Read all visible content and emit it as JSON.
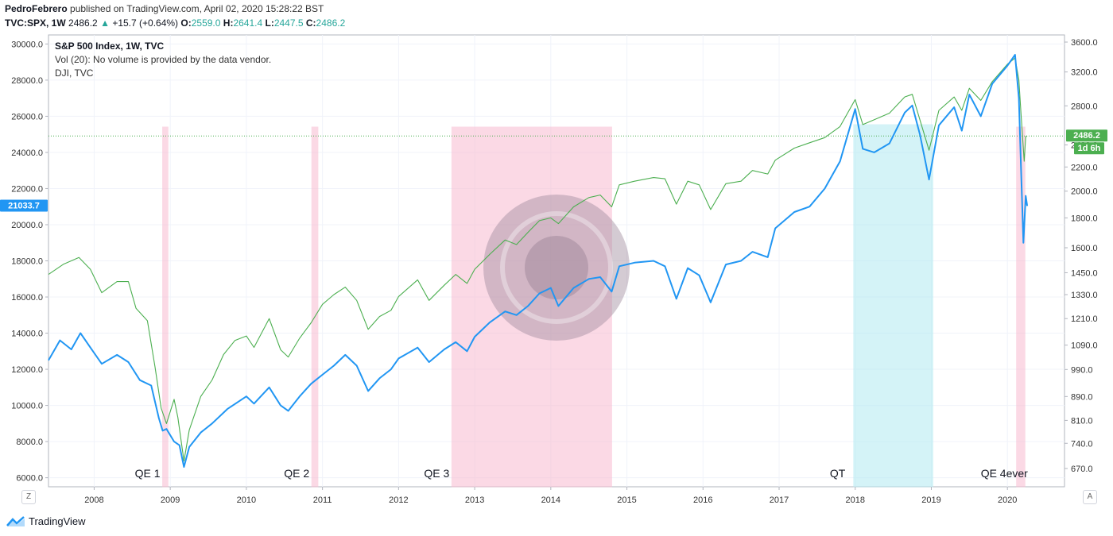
{
  "header": {
    "author": "PedroFebrero",
    "published": "published on TradingView.com, April 02, 2020 15:28:22 BST",
    "symbol": "TVC:SPX, 1W",
    "last": "2486.2",
    "change_arrow": "▲",
    "change": "+15.7 (+0.64%)",
    "o_label": "O:",
    "o": "2559.0",
    "h_label": "H:",
    "h": "2641.4",
    "l_label": "L:",
    "l": "2447.5",
    "c_label": "C:",
    "c": "2486.2"
  },
  "legend": {
    "line1": "S&P 500 Index, 1W, TVC",
    "line2": "Vol (20): No volume is provided by the data vendor.",
    "line3": "DJI, TVC"
  },
  "buttons": {
    "left": "Z",
    "right": "A"
  },
  "footer": {
    "brand": "TradingView"
  },
  "colors": {
    "spx": "#2196f3",
    "dji": "#4caf50",
    "qe": "#f8bbd0",
    "qt": "#b2ebf2",
    "badge_blue": "#2196f3",
    "badge_green": "#4caf50"
  },
  "chart_data": {
    "type": "line",
    "left_axis": {
      "label": "DJI",
      "ticks": [
        "30000.0",
        "28000.0",
        "26000.0",
        "24000.0",
        "22000.0",
        "20000.0",
        "18000.0",
        "16000.0",
        "14000.0",
        "12000.0",
        "10000.0",
        "8000.0",
        "6000.0"
      ],
      "range": [
        5500,
        30500
      ]
    },
    "right_axis": {
      "label": "SPX",
      "scale": "log",
      "ticks": [
        "3600.0",
        "3200.0",
        "2800.0",
        "2400.0",
        "2200.0",
        "2000.0",
        "1800.0",
        "1600.0",
        "1450.0",
        "1330.0",
        "1210.0",
        "1090.0",
        "990.0",
        "890.0",
        "810.0",
        "740.0",
        "670.0"
      ]
    },
    "x_ticks": [
      "2008",
      "2009",
      "2010",
      "2011",
      "2012",
      "2013",
      "2014",
      "2015",
      "2016",
      "2017",
      "2018",
      "2019",
      "2020"
    ],
    "x_range": [
      2007.4,
      2020.75
    ],
    "price_badges": [
      {
        "text": "21033.7",
        "value": 21033.7,
        "axis": "left"
      },
      {
        "text": "2486.2",
        "value": 2486.2,
        "axis": "right"
      },
      {
        "text": "1d 6h",
        "axis": "right"
      }
    ],
    "reference_line": {
      "value": 2486.2,
      "axis": "right"
    },
    "regions": [
      {
        "label": "QE 1",
        "x0": 2008.9,
        "x1": 2008.97,
        "kind": "qe"
      },
      {
        "label": "QE 2",
        "x0": 2010.86,
        "x1": 2010.94,
        "kind": "qe"
      },
      {
        "label": "QE 3",
        "x0": 2012.7,
        "x1": 2014.8,
        "kind": "qe"
      },
      {
        "label": "QT",
        "x0": 2017.98,
        "x1": 2019.02,
        "kind": "qt"
      },
      {
        "label": "QE 4ever",
        "x0": 2020.12,
        "x1": 2020.23,
        "kind": "qe"
      }
    ],
    "series": [
      {
        "axis": "right",
        "points": [
          [
            2007.4,
            1440
          ],
          [
            2007.6,
            1500
          ],
          [
            2007.8,
            1540
          ],
          [
            2007.95,
            1470
          ],
          [
            2008.1,
            1340
          ],
          [
            2008.3,
            1400
          ],
          [
            2008.45,
            1400
          ],
          [
            2008.55,
            1260
          ],
          [
            2008.7,
            1200
          ],
          [
            2008.8,
            1000
          ],
          [
            2008.88,
            850
          ],
          [
            2008.95,
            800
          ],
          [
            2009.05,
            880
          ],
          [
            2009.1,
            820
          ],
          [
            2009.18,
            690
          ],
          [
            2009.25,
            780
          ],
          [
            2009.4,
            890
          ],
          [
            2009.55,
            950
          ],
          [
            2009.7,
            1050
          ],
          [
            2009.85,
            1110
          ],
          [
            2010.0,
            1130
          ],
          [
            2010.1,
            1080
          ],
          [
            2010.3,
            1210
          ],
          [
            2010.45,
            1070
          ],
          [
            2010.55,
            1040
          ],
          [
            2010.7,
            1120
          ],
          [
            2010.85,
            1190
          ],
          [
            2011.0,
            1280
          ],
          [
            2011.15,
            1330
          ],
          [
            2011.3,
            1370
          ],
          [
            2011.45,
            1300
          ],
          [
            2011.6,
            1160
          ],
          [
            2011.75,
            1220
          ],
          [
            2011.9,
            1250
          ],
          [
            2012.0,
            1320
          ],
          [
            2012.25,
            1410
          ],
          [
            2012.4,
            1300
          ],
          [
            2012.6,
            1380
          ],
          [
            2012.75,
            1440
          ],
          [
            2012.9,
            1390
          ],
          [
            2013.0,
            1470
          ],
          [
            2013.2,
            1560
          ],
          [
            2013.4,
            1650
          ],
          [
            2013.55,
            1620
          ],
          [
            2013.7,
            1700
          ],
          [
            2013.85,
            1780
          ],
          [
            2014.0,
            1800
          ],
          [
            2014.1,
            1760
          ],
          [
            2014.3,
            1880
          ],
          [
            2014.5,
            1950
          ],
          [
            2014.65,
            1970
          ],
          [
            2014.8,
            1880
          ],
          [
            2014.9,
            2050
          ],
          [
            2015.1,
            2080
          ],
          [
            2015.35,
            2110
          ],
          [
            2015.5,
            2100
          ],
          [
            2015.65,
            1900
          ],
          [
            2015.8,
            2080
          ],
          [
            2015.95,
            2050
          ],
          [
            2016.1,
            1860
          ],
          [
            2016.3,
            2060
          ],
          [
            2016.5,
            2080
          ],
          [
            2016.65,
            2170
          ],
          [
            2016.85,
            2140
          ],
          [
            2016.95,
            2260
          ],
          [
            2017.2,
            2370
          ],
          [
            2017.4,
            2420
          ],
          [
            2017.6,
            2470
          ],
          [
            2017.8,
            2580
          ],
          [
            2018.0,
            2870
          ],
          [
            2018.1,
            2600
          ],
          [
            2018.25,
            2650
          ],
          [
            2018.45,
            2720
          ],
          [
            2018.65,
            2900
          ],
          [
            2018.75,
            2930
          ],
          [
            2018.85,
            2650
          ],
          [
            2018.97,
            2350
          ],
          [
            2019.1,
            2750
          ],
          [
            2019.3,
            2900
          ],
          [
            2019.4,
            2750
          ],
          [
            2019.5,
            3000
          ],
          [
            2019.65,
            2860
          ],
          [
            2019.8,
            3080
          ],
          [
            2020.0,
            3300
          ],
          [
            2020.1,
            3380
          ],
          [
            2020.15,
            3100
          ],
          [
            2020.18,
            2700
          ],
          [
            2020.22,
            2250
          ],
          [
            2020.24,
            2480
          ],
          [
            2020.26,
            2486
          ]
        ]
      },
      {
        "axis": "left",
        "points": [
          [
            2007.4,
            12500
          ],
          [
            2007.55,
            13600
          ],
          [
            2007.7,
            13100
          ],
          [
            2007.82,
            14000
          ],
          [
            2007.95,
            13200
          ],
          [
            2008.1,
            12300
          ],
          [
            2008.3,
            12800
          ],
          [
            2008.45,
            12400
          ],
          [
            2008.6,
            11400
          ],
          [
            2008.75,
            11100
          ],
          [
            2008.85,
            9300
          ],
          [
            2008.9,
            8600
          ],
          [
            2008.95,
            8700
          ],
          [
            2009.05,
            8000
          ],
          [
            2009.12,
            7800
          ],
          [
            2009.18,
            6600
          ],
          [
            2009.25,
            7700
          ],
          [
            2009.4,
            8500
          ],
          [
            2009.55,
            9000
          ],
          [
            2009.75,
            9800
          ],
          [
            2010.0,
            10500
          ],
          [
            2010.1,
            10100
          ],
          [
            2010.3,
            11000
          ],
          [
            2010.45,
            10000
          ],
          [
            2010.55,
            9700
          ],
          [
            2010.7,
            10500
          ],
          [
            2010.85,
            11200
          ],
          [
            2011.0,
            11700
          ],
          [
            2011.15,
            12200
          ],
          [
            2011.3,
            12800
          ],
          [
            2011.45,
            12200
          ],
          [
            2011.6,
            10800
          ],
          [
            2011.75,
            11500
          ],
          [
            2011.9,
            12000
          ],
          [
            2012.0,
            12600
          ],
          [
            2012.25,
            13200
          ],
          [
            2012.4,
            12400
          ],
          [
            2012.6,
            13100
          ],
          [
            2012.75,
            13500
          ],
          [
            2012.9,
            13000
          ],
          [
            2013.0,
            13800
          ],
          [
            2013.2,
            14600
          ],
          [
            2013.4,
            15200
          ],
          [
            2013.55,
            15000
          ],
          [
            2013.7,
            15500
          ],
          [
            2013.85,
            16200
          ],
          [
            2014.0,
            16500
          ],
          [
            2014.1,
            15500
          ],
          [
            2014.3,
            16500
          ],
          [
            2014.5,
            17000
          ],
          [
            2014.65,
            17100
          ],
          [
            2014.8,
            16300
          ],
          [
            2014.9,
            17700
          ],
          [
            2015.1,
            17900
          ],
          [
            2015.35,
            18000
          ],
          [
            2015.5,
            17700
          ],
          [
            2015.65,
            15900
          ],
          [
            2015.8,
            17600
          ],
          [
            2015.95,
            17200
          ],
          [
            2016.1,
            15700
          ],
          [
            2016.3,
            17800
          ],
          [
            2016.5,
            18000
          ],
          [
            2016.65,
            18500
          ],
          [
            2016.85,
            18200
          ],
          [
            2016.95,
            19800
          ],
          [
            2017.2,
            20700
          ],
          [
            2017.4,
            21000
          ],
          [
            2017.6,
            22000
          ],
          [
            2017.8,
            23500
          ],
          [
            2018.0,
            26400
          ],
          [
            2018.1,
            24200
          ],
          [
            2018.25,
            24000
          ],
          [
            2018.45,
            24500
          ],
          [
            2018.65,
            26200
          ],
          [
            2018.75,
            26600
          ],
          [
            2018.85,
            25000
          ],
          [
            2018.97,
            22500
          ],
          [
            2019.1,
            25500
          ],
          [
            2019.3,
            26500
          ],
          [
            2019.4,
            25200
          ],
          [
            2019.5,
            27200
          ],
          [
            2019.65,
            26000
          ],
          [
            2019.8,
            27800
          ],
          [
            2020.0,
            28800
          ],
          [
            2020.1,
            29400
          ],
          [
            2020.15,
            27000
          ],
          [
            2020.18,
            23000
          ],
          [
            2020.21,
            19000
          ],
          [
            2020.24,
            21600
          ],
          [
            2020.26,
            21034
          ]
        ]
      }
    ]
  }
}
